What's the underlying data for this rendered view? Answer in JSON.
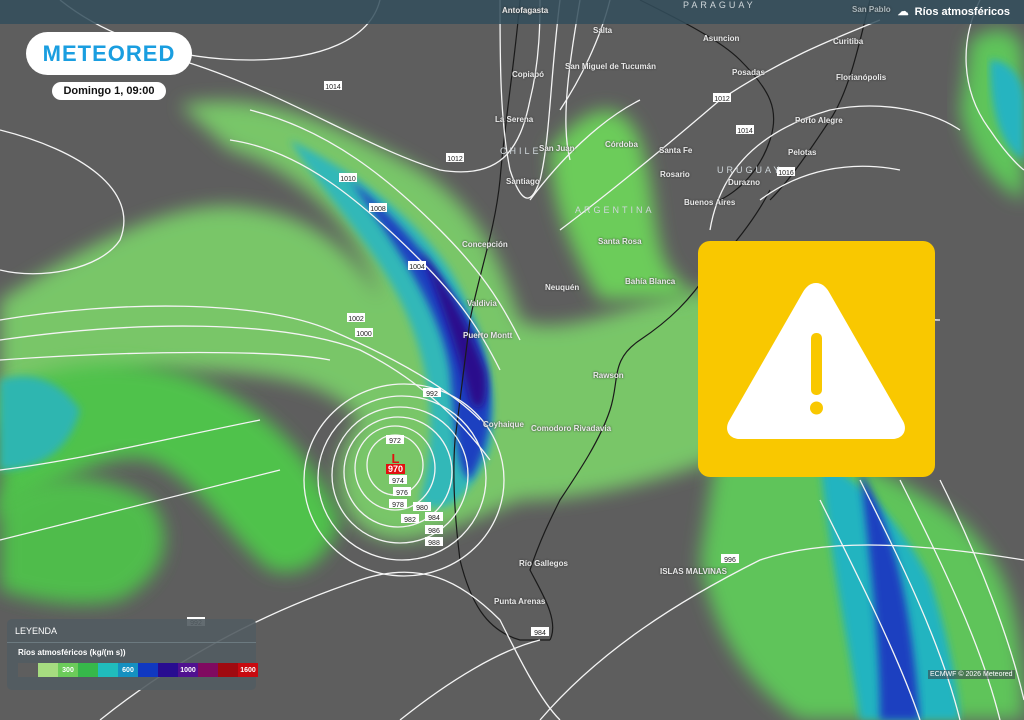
{
  "header": {
    "layer_title": "Ríos atmosféricos",
    "layer_icon": "wind-layers-icon",
    "corner_city": "San Pablo"
  },
  "brand": {
    "logo": "METEORED",
    "date": "Domingo 1, 09:00"
  },
  "low": {
    "symbol": "L",
    "pressure": "970"
  },
  "isobar_labels": [
    "1014",
    "1012",
    "1010",
    "1008",
    "1004",
    "1002",
    "1000",
    "992",
    "972",
    "974",
    "976",
    "978",
    "980",
    "982",
    "984",
    "986",
    "988",
    "996",
    "992",
    "984",
    "1012",
    "1014",
    "1016"
  ],
  "cities": [
    "Antofagasta",
    "Salta",
    "San Miguel de Tucumán",
    "Copiapó",
    "La Serena",
    "San Juan",
    "Córdoba",
    "Santiago",
    "Santa Fe",
    "Rosario",
    "Asuncion",
    "Posadas",
    "Curitiba",
    "Florianópolis",
    "Porto Alegre",
    "Pelotas",
    "Durazno",
    "Buenos Aires",
    "Concepción",
    "Santa Rosa",
    "Neuquén",
    "Bahía Blanca",
    "Valdivia",
    "Puerto Montt",
    "Rawson",
    "Coyhaique",
    "Comodoro Rivadavia",
    "Río Gallegos",
    "Punta Arenas",
    "ISLAS MALVINAS"
  ],
  "countries": [
    "PARAGUAY",
    "CHILE",
    "ARGENTINA",
    "URUGUAY"
  ],
  "legend": {
    "title": "LEYENDA",
    "subtitle": "Ríos atmosféricos (kg/(m s))",
    "colors": [
      "#5e5e5e",
      "#a6dc80",
      "#6ccc5a",
      "#36b84a",
      "#20bcbc",
      "#1590c0",
      "#1038c0",
      "#280c90",
      "#501090",
      "#800a60",
      "#a00a10",
      "#c80a10"
    ],
    "labels": [
      "",
      "",
      "300",
      "",
      "",
      "600",
      "",
      "",
      "1000",
      "",
      "",
      "1600"
    ]
  },
  "credit": "ECMWF © 2026 Meteored",
  "warning": {
    "icon": "warning-icon",
    "color": "#f9c800"
  }
}
